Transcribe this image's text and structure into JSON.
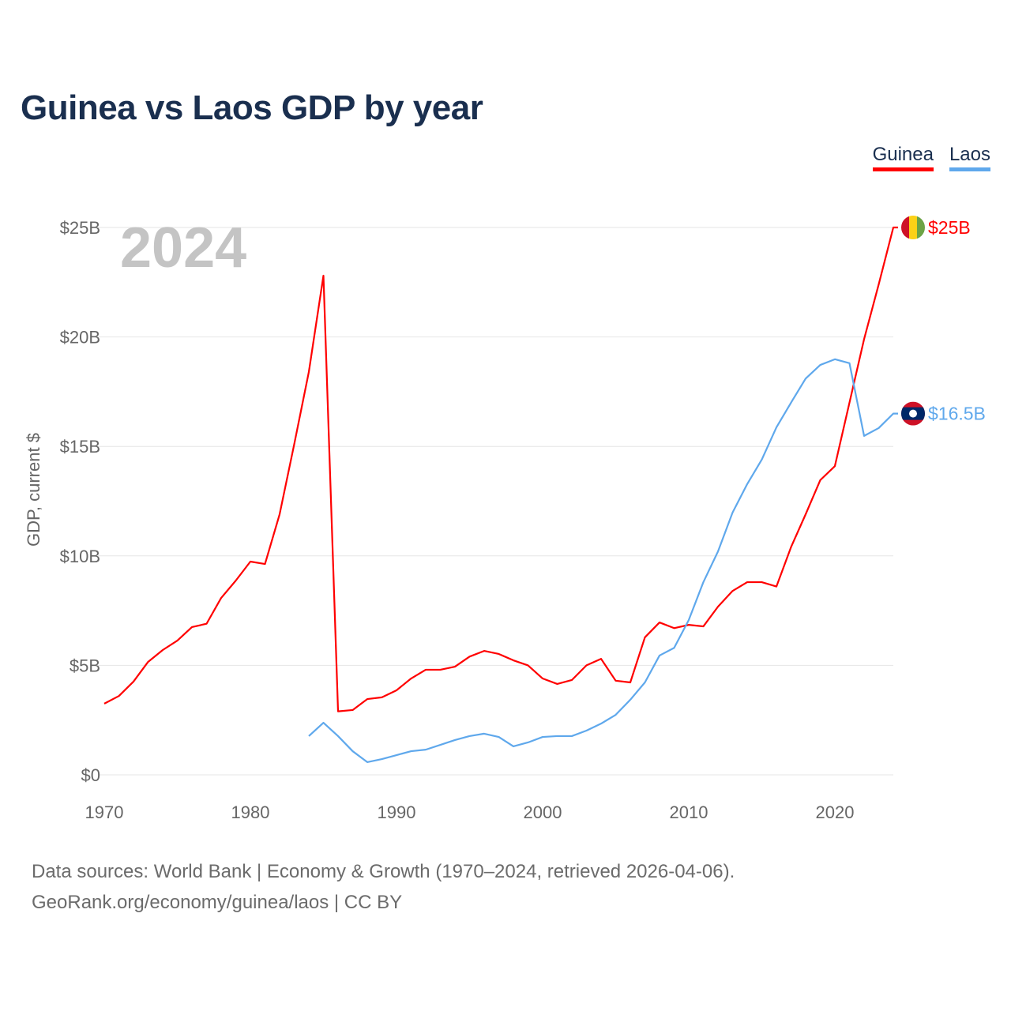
{
  "title": "Guinea vs Laos GDP by year",
  "footer": {
    "line1": "Data sources: World Bank | Economy & Growth (1970–2024, retrieved 2026-04-06).",
    "line2": "GeoRank.org/economy/guinea/laos | CC BY"
  },
  "chart_data": {
    "type": "line",
    "title": "Guinea vs Laos GDP by year",
    "xlabel": "",
    "ylabel": "GDP, current $",
    "year_label": "2024",
    "xlim": [
      1970,
      2024
    ],
    "ylim": [
      0,
      25
    ],
    "x_ticks": [
      1970,
      1980,
      1990,
      2000,
      2010,
      2020
    ],
    "x_tick_labels": [
      "1970",
      "1980",
      "1990",
      "2000",
      "2010",
      "2020"
    ],
    "y_ticks": [
      0,
      5,
      10,
      15,
      20,
      25
    ],
    "y_tick_labels": [
      "$0",
      "$5B",
      "$10B",
      "$15B",
      "$20B",
      "$25B"
    ],
    "grid": true,
    "legend_placement": "top-right",
    "series": [
      {
        "name": "Guinea",
        "color": "#ff0000",
        "end_label": "$25B",
        "start_year": 1970,
        "values": [
          3.25,
          3.6,
          4.26,
          5.16,
          5.7,
          6.13,
          6.75,
          6.9,
          8.08,
          8.87,
          9.74,
          9.63,
          11.9,
          15.1,
          18.4,
          22.8,
          2.9,
          2.96,
          3.46,
          3.54,
          3.86,
          4.4,
          4.8,
          4.8,
          4.94,
          5.4,
          5.66,
          5.52,
          5.23,
          5.0,
          4.4,
          4.15,
          4.33,
          5.0,
          5.3,
          4.3,
          4.22,
          6.28,
          6.96,
          6.7,
          6.85,
          6.78,
          7.68,
          8.4,
          8.8,
          8.8,
          8.6,
          10.4,
          11.9,
          13.46,
          14.1,
          17.0,
          19.9,
          22.4,
          25.0
        ]
      },
      {
        "name": "Laos",
        "color": "#5fa8ec",
        "end_label": "$16.5B",
        "start_year": 1984,
        "values": [
          1.77,
          2.38,
          1.77,
          1.08,
          0.58,
          0.72,
          0.9,
          1.08,
          1.15,
          1.37,
          1.59,
          1.77,
          1.88,
          1.73,
          1.3,
          1.48,
          1.73,
          1.77,
          1.77,
          2.02,
          2.34,
          2.74,
          3.43,
          4.22,
          5.45,
          5.8,
          7.07,
          8.8,
          10.2,
          11.98,
          13.28,
          14.4,
          15.87,
          17.0,
          18.1,
          18.72,
          18.98,
          18.8,
          15.48,
          15.84,
          16.5
        ]
      }
    ]
  }
}
